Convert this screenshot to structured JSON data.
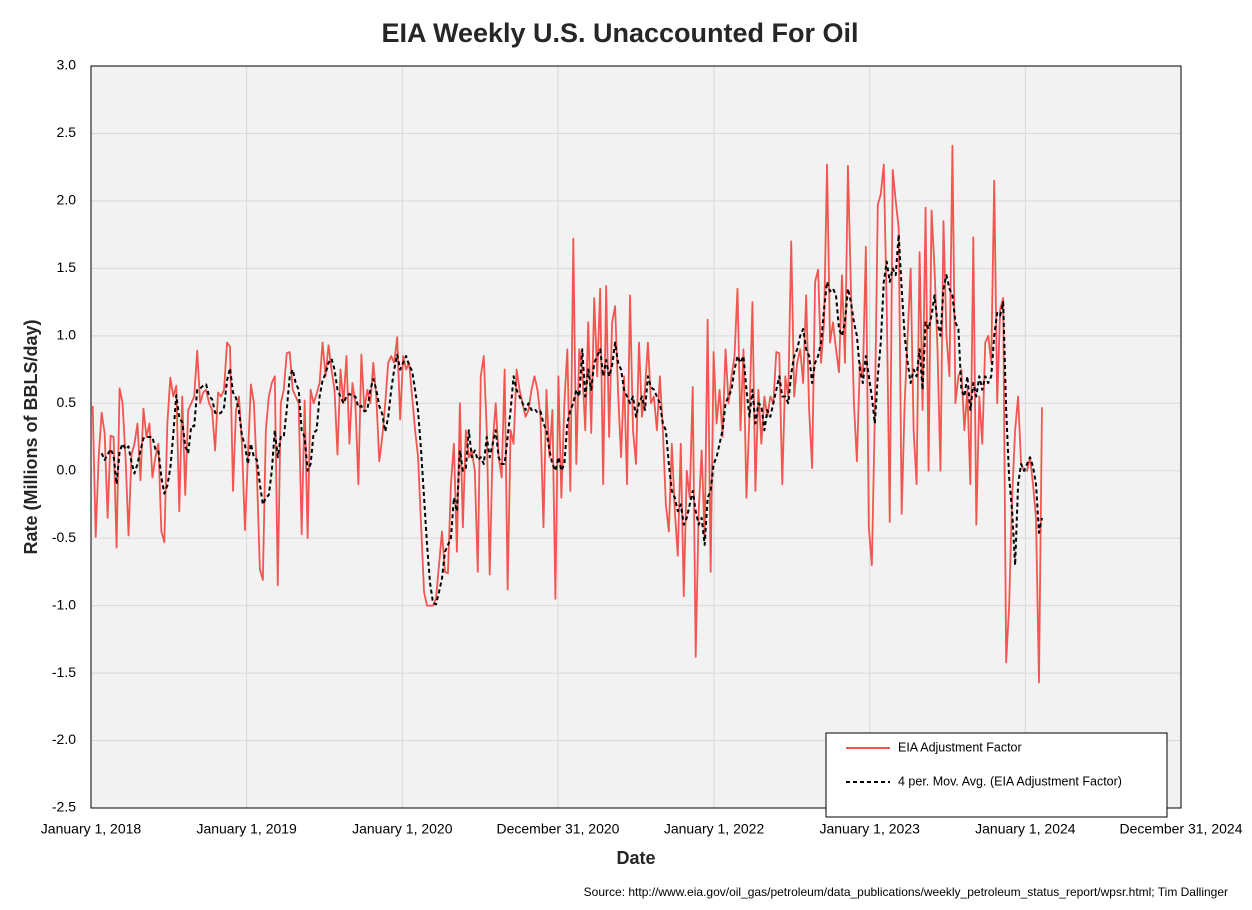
{
  "chart_data": {
    "type": "line",
    "title": "EIA Weekly U.S. Unaccounted For Oil",
    "x_label": "Date",
    "y_label": "Rate (Millions of BBLS/day)",
    "source": "Source: http://www.eia.gov/oil_gas/petroleum/data_publications/weekly_petroleum_status_report/wpsr.html; Tim Dallinger",
    "grid": true,
    "legend": "lower right",
    "xlim": [
      "2018-01-01",
      "2024-12-31"
    ],
    "xticks": [
      {
        "value": "2018-01-01",
        "label": "January 1, 2018"
      },
      {
        "value": "2019-01-01",
        "label": "January 1, 2019"
      },
      {
        "value": "2020-01-01",
        "label": "January 1, 2020"
      },
      {
        "value": "2020-12-31",
        "label": "December 31, 2020"
      },
      {
        "value": "2022-01-01",
        "label": "January 1, 2022"
      },
      {
        "value": "2023-01-01",
        "label": "January 1, 2023"
      },
      {
        "value": "2024-01-01",
        "label": "January 1, 2024"
      },
      {
        "value": "2024-12-31",
        "label": "December 31, 2024"
      }
    ],
    "ylim": [
      -2.5,
      3
    ],
    "yticks": [
      -2.5,
      {
        "value": -2,
        "label": "-2.0"
      },
      -1.5,
      {
        "value": -1,
        "label": "-1.0"
      },
      -0.5,
      {
        "value": 0,
        "label": "0.0"
      },
      0.5,
      {
        "value": 1,
        "label": "1.0"
      },
      1.5,
      {
        "value": 2,
        "label": "2.0"
      },
      2.5,
      {
        "value": 3,
        "label": "3.0"
      }
    ],
    "x": [
      "2018-01-05",
      "2018-01-12",
      "2018-01-19",
      "2018-01-26",
      "2018-02-02",
      "2018-02-09",
      "2018-02-16",
      "2018-02-23",
      "2018-03-02",
      "2018-03-09",
      "2018-03-16",
      "2018-03-23",
      "2018-03-30",
      "2018-04-06",
      "2018-04-13",
      "2018-04-20",
      "2018-04-27",
      "2018-05-04",
      "2018-05-11",
      "2018-05-18",
      "2018-05-25",
      "2018-06-01",
      "2018-06-08",
      "2018-06-15",
      "2018-06-22",
      "2018-06-29",
      "2018-07-06",
      "2018-07-13",
      "2018-07-20",
      "2018-07-27",
      "2018-08-03",
      "2018-08-10",
      "2018-08-17",
      "2018-08-24",
      "2018-08-31",
      "2018-09-07",
      "2018-09-14",
      "2018-09-21",
      "2018-09-28",
      "2018-10-05",
      "2018-10-12",
      "2018-10-19",
      "2018-10-26",
      "2018-11-02",
      "2018-11-09",
      "2018-11-16",
      "2018-11-23",
      "2018-11-30",
      "2018-12-07",
      "2018-12-14",
      "2018-12-21",
      "2018-12-28",
      "2019-01-04",
      "2019-01-11",
      "2019-01-18",
      "2019-01-25",
      "2019-02-01",
      "2019-02-08",
      "2019-02-15",
      "2019-02-22",
      "2019-03-01",
      "2019-03-08",
      "2019-03-15",
      "2019-03-22",
      "2019-03-29",
      "2019-04-05",
      "2019-04-12",
      "2019-04-19",
      "2019-04-26",
      "2019-05-03",
      "2019-05-10",
      "2019-05-17",
      "2019-05-24",
      "2019-05-31",
      "2019-06-07",
      "2019-06-14",
      "2019-06-21",
      "2019-06-28",
      "2019-07-05",
      "2019-07-12",
      "2019-07-19",
      "2019-07-26",
      "2019-08-02",
      "2019-08-09",
      "2019-08-16",
      "2019-08-23",
      "2019-08-30",
      "2019-09-06",
      "2019-09-13",
      "2019-09-20",
      "2019-09-27",
      "2019-10-04",
      "2019-10-11",
      "2019-10-18",
      "2019-10-25",
      "2019-11-01",
      "2019-11-08",
      "2019-11-15",
      "2019-11-22",
      "2019-11-29",
      "2019-12-06",
      "2019-12-13",
      "2019-12-20",
      "2019-12-27",
      "2020-01-03",
      "2020-01-10",
      "2020-01-17",
      "2020-01-24",
      "2020-01-31",
      "2020-02-07",
      "2020-02-14",
      "2020-02-21",
      "2020-02-28",
      "2020-03-06",
      "2020-03-13",
      "2020-03-20",
      "2020-03-27",
      "2020-04-03",
      "2020-04-10",
      "2020-04-17",
      "2020-04-24",
      "2020-05-01",
      "2020-05-08",
      "2020-05-15",
      "2020-05-22",
      "2020-05-29",
      "2020-06-05",
      "2020-06-12",
      "2020-06-19",
      "2020-06-26",
      "2020-07-03",
      "2020-07-10",
      "2020-07-17",
      "2020-07-24",
      "2020-07-31",
      "2020-08-07",
      "2020-08-14",
      "2020-08-21",
      "2020-08-28",
      "2020-09-04",
      "2020-09-11",
      "2020-09-18",
      "2020-09-25",
      "2020-10-02",
      "2020-10-09",
      "2020-10-16",
      "2020-10-23",
      "2020-10-30",
      "2020-11-06",
      "2020-11-13",
      "2020-11-20",
      "2020-11-27",
      "2020-12-04",
      "2020-12-11",
      "2020-12-18",
      "2020-12-25",
      "2021-01-01",
      "2021-01-08",
      "2021-01-15",
      "2021-01-22",
      "2021-01-29",
      "2021-02-05",
      "2021-02-12",
      "2021-02-19",
      "2021-02-26",
      "2021-03-05",
      "2021-03-12",
      "2021-03-19",
      "2021-03-26",
      "2021-04-02",
      "2021-04-09",
      "2021-04-16",
      "2021-04-23",
      "2021-04-30",
      "2021-05-07",
      "2021-05-14",
      "2021-05-21",
      "2021-05-28",
      "2021-06-04",
      "2021-06-11",
      "2021-06-18",
      "2021-06-25",
      "2021-07-02",
      "2021-07-09",
      "2021-07-16",
      "2021-07-23",
      "2021-07-30",
      "2021-08-06",
      "2021-08-13",
      "2021-08-20",
      "2021-08-27",
      "2021-09-03",
      "2021-09-10",
      "2021-09-17",
      "2021-09-24",
      "2021-10-01",
      "2021-10-08",
      "2021-10-15",
      "2021-10-22",
      "2021-10-29",
      "2021-11-05",
      "2021-11-12",
      "2021-11-19",
      "2021-11-26",
      "2021-12-03",
      "2021-12-10",
      "2021-12-17",
      "2021-12-24",
      "2021-12-31",
      "2022-01-07",
      "2022-01-14",
      "2022-01-21",
      "2022-01-28",
      "2022-02-04",
      "2022-02-11",
      "2022-02-18",
      "2022-02-25",
      "2022-03-04",
      "2022-03-11",
      "2022-03-18",
      "2022-03-25",
      "2022-04-01",
      "2022-04-08",
      "2022-04-15",
      "2022-04-22",
      "2022-04-29",
      "2022-05-06",
      "2022-05-13",
      "2022-05-20",
      "2022-05-27",
      "2022-06-03",
      "2022-06-10",
      "2022-06-17",
      "2022-06-24",
      "2022-07-01",
      "2022-07-08",
      "2022-07-15",
      "2022-07-22",
      "2022-07-29",
      "2022-08-05",
      "2022-08-12",
      "2022-08-19",
      "2022-08-26",
      "2022-09-02",
      "2022-09-09",
      "2022-09-16",
      "2022-09-23",
      "2022-09-30",
      "2022-10-07",
      "2022-10-14",
      "2022-10-21",
      "2022-10-28",
      "2022-11-04",
      "2022-11-11",
      "2022-11-18",
      "2022-11-25",
      "2022-12-02",
      "2022-12-09",
      "2022-12-16",
      "2022-12-23",
      "2022-12-30",
      "2023-01-06",
      "2023-01-13",
      "2023-01-20",
      "2023-01-27",
      "2023-02-03",
      "2023-02-10",
      "2023-02-17",
      "2023-02-24",
      "2023-03-03",
      "2023-03-10",
      "2023-03-17",
      "2023-03-24",
      "2023-03-31",
      "2023-04-07",
      "2023-04-14",
      "2023-04-21",
      "2023-04-28",
      "2023-05-05",
      "2023-05-12",
      "2023-05-19",
      "2023-05-26",
      "2023-06-02",
      "2023-06-09",
      "2023-06-16",
      "2023-06-23",
      "2023-06-30",
      "2023-07-07",
      "2023-07-14",
      "2023-07-21",
      "2023-07-28",
      "2023-08-04",
      "2023-08-11",
      "2023-08-18",
      "2023-08-25",
      "2023-09-01",
      "2023-09-08",
      "2023-09-15",
      "2023-09-22",
      "2023-09-29",
      "2023-10-06",
      "2023-10-13",
      "2023-10-20",
      "2023-10-27",
      "2023-11-03",
      "2023-11-10",
      "2023-11-17",
      "2023-11-24",
      "2023-12-01",
      "2023-12-08",
      "2023-12-15",
      "2023-12-22",
      "2023-12-29",
      "2024-01-05",
      "2024-01-12",
      "2024-01-19",
      "2024-01-26",
      "2024-02-02",
      "2024-02-09"
    ],
    "series": [
      {
        "name": "EIA Adjustment Factor",
        "color": "#f25650",
        "dash": false,
        "values": [
          0.48,
          -0.49,
          0.1,
          0.43,
          0.28,
          -0.35,
          0.26,
          0.25,
          -0.57,
          0.61,
          0.5,
          0.1,
          -0.48,
          0.12,
          0.2,
          0.35,
          -0.07,
          0.46,
          0.25,
          0.35,
          -0.05,
          0.1,
          0.2,
          -0.45,
          -0.53,
          0.35,
          0.69,
          0.55,
          0.63,
          -0.3,
          0.55,
          -0.18,
          0.45,
          0.5,
          0.55,
          0.89,
          0.5,
          0.58,
          0.6,
          0.5,
          0.45,
          0.15,
          0.58,
          0.55,
          0.6,
          0.95,
          0.92,
          -0.15,
          0.45,
          0.55,
          0.2,
          -0.44,
          0.1,
          0.64,
          0.5,
          -0.02,
          -0.73,
          -0.81,
          0.3,
          0.55,
          0.65,
          0.7,
          -0.85,
          0.5,
          0.6,
          0.87,
          0.88,
          0.6,
          0.55,
          0.5,
          -0.47,
          0.52,
          -0.5,
          0.6,
          0.5,
          0.57,
          0.65,
          0.95,
          0.7,
          0.93,
          0.75,
          0.6,
          0.12,
          0.75,
          0.5,
          0.85,
          0.2,
          0.65,
          0.5,
          -0.1,
          0.86,
          0.45,
          0.6,
          0.5,
          0.8,
          0.55,
          0.07,
          0.25,
          0.5,
          0.8,
          0.85,
          0.8,
          0.99,
          0.38,
          0.85,
          0.75,
          0.8,
          0.55,
          0.3,
          0.1,
          -0.4,
          -0.9,
          -1.0,
          -1.0,
          -1.0,
          -0.95,
          -0.7,
          -0.45,
          -0.75,
          -0.76,
          -0.1,
          0.2,
          -0.6,
          0.5,
          -0.42,
          0.3,
          0.1,
          0.15,
          0.0,
          -0.75,
          0.7,
          0.85,
          0.3,
          -0.77,
          0.2,
          0.5,
          0.1,
          -0.05,
          0.75,
          -0.88,
          0.3,
          0.2,
          0.75,
          0.6,
          0.5,
          0.4,
          0.45,
          0.6,
          0.7,
          0.6,
          0.4,
          -0.42,
          0.6,
          0.1,
          0.45,
          -0.95,
          0.7,
          -0.2,
          0.5,
          0.9,
          -0.15,
          1.72,
          0.05,
          0.9,
          0.75,
          0.3,
          1.1,
          0.28,
          1.28,
          0.7,
          1.35,
          -0.1,
          1.37,
          0.25,
          1.1,
          1.22,
          0.58,
          0.1,
          0.7,
          -0.1,
          1.3,
          0.3,
          0.05,
          0.95,
          0.4,
          0.6,
          0.95,
          0.5,
          0.55,
          0.3,
          0.7,
          0.3,
          -0.25,
          -0.45,
          0.2,
          -0.3,
          -0.63,
          0.2,
          -0.93,
          0.0,
          -0.2,
          0.62,
          -1.38,
          -0.3,
          0.15,
          -0.5,
          1.12,
          -0.75,
          0.88,
          0.35,
          0.6,
          0.25,
          0.9,
          0.5,
          0.7,
          0.85,
          1.35,
          0.3,
          0.9,
          -0.2,
          0.4,
          1.25,
          -0.15,
          0.6,
          0.2,
          0.55,
          0.4,
          0.55,
          0.5,
          0.88,
          0.87,
          -0.1,
          0.7,
          0.55,
          1.7,
          0.55,
          0.8,
          0.9,
          0.65,
          1.3,
          0.45,
          0.02,
          1.4,
          1.49,
          0.8,
          1.1,
          2.27,
          0.95,
          1.1,
          0.9,
          0.73,
          1.45,
          0.8,
          2.26,
          1.35,
          0.5,
          0.07,
          0.8,
          0.7,
          1.66,
          -0.42,
          -0.7,
          0.4,
          1.97,
          2.05,
          2.27,
          1.2,
          -0.38,
          2.23,
          2.0,
          1.8,
          -0.32,
          0.5,
          1.0,
          1.5,
          0.3,
          -0.1,
          1.62,
          0.45,
          1.95,
          0.0,
          1.93,
          1.5,
          0.9,
          0.0,
          1.85,
          1.0,
          0.7,
          2.41,
          0.5,
          0.7,
          0.75,
          0.3,
          0.6,
          -0.1,
          1.73,
          -0.4,
          0.55,
          0.2,
          0.95,
          1.0,
          0.8,
          2.15,
          0.5,
          1.2,
          1.28,
          -1.42,
          -1.0,
          -0.2,
          0.3,
          0.55,
          0.05,
          0.0,
          0.0,
          0.1,
          -0.1,
          -0.35,
          -1.57,
          0.47
        ]
      },
      {
        "name": "4 per. Mov. Avg. (EIA Adjustment Factor)",
        "color": "#000000",
        "dash": true,
        "values": [
          null,
          null,
          null,
          0.13,
          0.08,
          0.12,
          0.16,
          0.11,
          -0.1,
          0.14,
          0.2,
          0.16,
          0.18,
          0.06,
          -0.02,
          0.05,
          0.15,
          0.24,
          0.25,
          0.25,
          0.25,
          0.16,
          0.15,
          -0.05,
          -0.17,
          -0.11,
          0.02,
          0.27,
          0.56,
          0.39,
          0.36,
          0.18,
          0.13,
          0.33,
          0.33,
          0.6,
          0.61,
          0.63,
          0.64,
          0.55,
          0.53,
          0.43,
          0.42,
          0.43,
          0.47,
          0.67,
          0.76,
          0.58,
          0.54,
          0.44,
          0.26,
          0.19,
          0.05,
          0.2,
          0.1,
          0.08,
          -0.1,
          -0.25,
          -0.2,
          -0.18,
          0.0,
          0.3,
          0.1,
          0.25,
          0.25,
          0.45,
          0.7,
          0.75,
          0.65,
          0.6,
          0.3,
          0.25,
          0.0,
          0.05,
          0.28,
          0.3,
          0.55,
          0.67,
          0.72,
          0.8,
          0.83,
          0.75,
          0.6,
          0.55,
          0.5,
          0.55,
          0.57,
          0.55,
          0.55,
          0.47,
          0.48,
          0.44,
          0.45,
          0.6,
          0.68,
          0.6,
          0.48,
          0.42,
          0.29,
          0.4,
          0.6,
          0.75,
          0.86,
          0.75,
          0.8,
          0.85,
          0.78,
          0.74,
          0.6,
          0.44,
          0.15,
          -0.2,
          -0.55,
          -0.83,
          -0.98,
          -0.99,
          -0.9,
          -0.8,
          -0.6,
          -0.55,
          -0.5,
          -0.2,
          -0.3,
          0.15,
          0.0,
          0.02,
          0.3,
          0.1,
          0.15,
          0.08,
          0.1,
          0.05,
          0.25,
          0.1,
          0.2,
          0.3,
          0.1,
          0.05,
          0.05,
          0.25,
          0.45,
          0.7,
          0.6,
          0.55,
          0.5,
          0.45,
          0.5,
          0.45,
          0.46,
          0.43,
          0.44,
          0.35,
          0.3,
          0.15,
          0.05,
          0.0,
          0.1,
          0.0,
          0.05,
          0.35,
          0.45,
          0.5,
          0.6,
          0.55,
          0.9,
          0.55,
          0.75,
          0.6,
          0.8,
          0.85,
          0.9,
          0.7,
          0.82,
          0.7,
          0.78,
          0.95,
          0.8,
          0.75,
          0.6,
          0.55,
          0.5,
          0.55,
          0.4,
          0.5,
          0.55,
          0.45,
          0.7,
          0.62,
          0.6,
          0.55,
          0.5,
          0.35,
          0.3,
          0.05,
          -0.15,
          -0.2,
          -0.3,
          -0.25,
          -0.4,
          -0.35,
          -0.25,
          -0.15,
          -0.3,
          -0.4,
          -0.35,
          -0.55,
          -0.2,
          -0.15,
          0.05,
          0.1,
          0.2,
          0.3,
          0.5,
          0.55,
          0.6,
          0.75,
          0.85,
          0.8,
          0.85,
          0.6,
          0.4,
          0.6,
          0.35,
          0.5,
          0.48,
          0.3,
          0.45,
          0.4,
          0.5,
          0.6,
          0.7,
          0.55,
          0.55,
          0.5,
          0.72,
          0.85,
          0.9,
          1.0,
          1.05,
          0.9,
          0.85,
          0.65,
          0.8,
          0.85,
          0.95,
          1.2,
          1.4,
          1.33,
          1.35,
          1.3,
          1.05,
          1.0,
          1.1,
          1.35,
          1.25,
          1.1,
          1.0,
          0.75,
          0.65,
          0.85,
          0.7,
          0.55,
          0.35,
          0.7,
          0.95,
          1.4,
          1.55,
          1.4,
          1.5,
          1.45,
          1.75,
          1.35,
          1.0,
          0.8,
          0.65,
          0.75,
          0.7,
          0.9,
          0.6,
          1.1,
          1.05,
          1.15,
          1.3,
          1.1,
          1.0,
          1.35,
          1.45,
          1.35,
          1.3,
          1.1,
          1.05,
          0.6,
          0.55,
          0.7,
          0.45,
          0.65,
          0.55,
          0.7,
          0.6,
          0.7,
          0.65,
          0.7,
          1.0,
          1.17,
          1.15,
          1.25,
          0.45,
          -0.05,
          -0.3,
          -0.7,
          -0.1,
          0.05,
          0.0,
          0.05,
          0.1,
          0.03,
          -0.1,
          -0.46,
          -0.35
        ]
      }
    ]
  }
}
